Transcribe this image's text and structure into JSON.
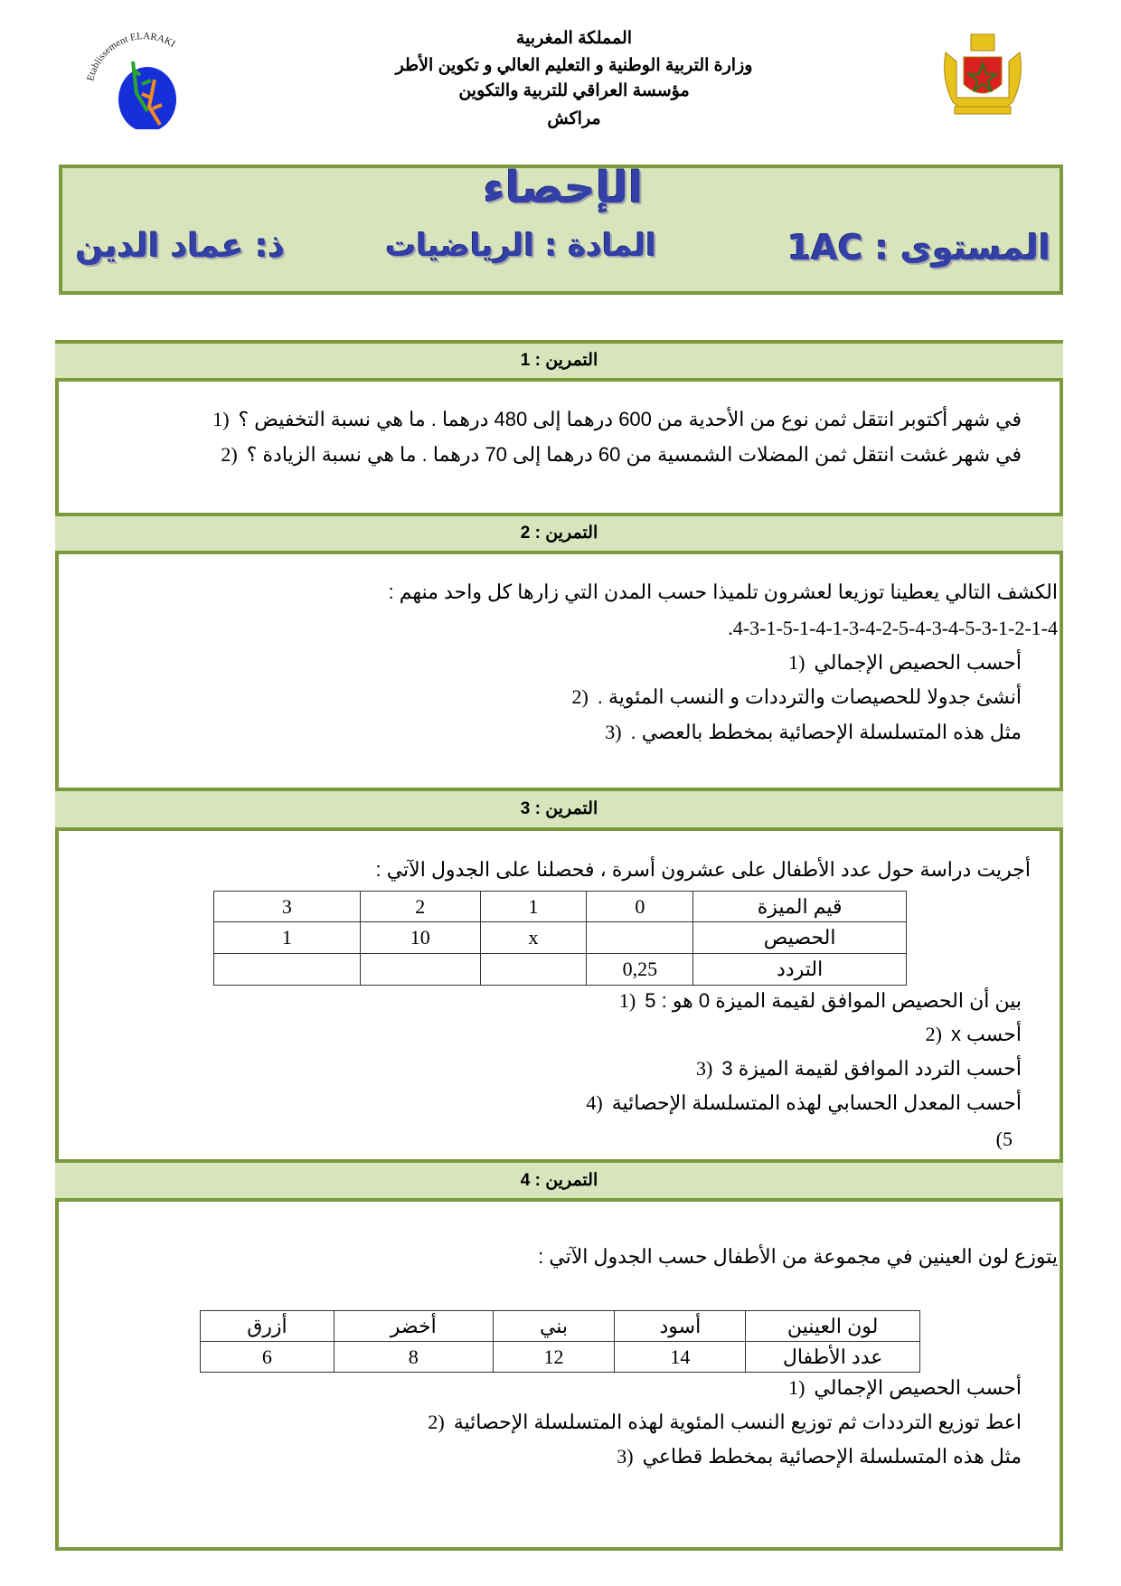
{
  "header": {
    "logo_left_text": "Etablissement ELARAKI",
    "lines": [
      "المملكة المغربية",
      "وزارة التربية الوطنية و التعليم العالي و تكوين الأطر",
      "مؤسسة العراقي للتربية والتكوين",
      "مراكش"
    ]
  },
  "title_box": {
    "title": "الإحصاء",
    "level": "المستوى : 1AC",
    "subject": "المادة : الرياضيات",
    "teacher": "ذ: عماد الدين"
  },
  "exercises": [
    {
      "heading": "التمرين : 1",
      "items": [
        {
          "n": "1)",
          "text": "في شهر أكتوبر انتقل ثمن نوع من الأحدية من 600 درهما إلى 480 درهما . ما هي نسبة التخفيض ؟"
        },
        {
          "n": "2)",
          "text": "في شهر غشت انتقل ثمن المضلات الشمسية من 60 درهما إلى 70 درهما . ما هي نسبة الزيادة ؟"
        }
      ]
    },
    {
      "heading": "التمرين : 2",
      "intro": "الكشف التالي يعطينا توزيعا لعشرون تلميذا حسب المدن التي زارها كل واحد منهم :",
      "series": ".4-3-1-5-1-4-1-3-4-2-5-4-3-4-5-3-1-2-1-4",
      "items": [
        {
          "n": "1)",
          "text": "أحسب الحصيص الإجمالي"
        },
        {
          "n": "2)",
          "text": "أنشئ جدولا للحصيصات والترددات و النسب المئوية ."
        },
        {
          "n": "3)",
          "text": "مثل هذه المتسلسلة الإحصائية بمخطط بالعصي ."
        }
      ]
    },
    {
      "heading": "التمرين : 3",
      "intro": "أجريت دراسة حول عدد الأطفال على عشرون أسرة ، فحصلنا على الجدول الآتي :",
      "table": [
        [
          "قيم الميزة",
          "0",
          "1",
          "2",
          "3"
        ],
        [
          "الحصيص",
          "",
          "x",
          "10",
          "1"
        ],
        [
          "التردد",
          "0,25",
          "",
          "",
          ""
        ]
      ],
      "items": [
        {
          "n": "1)",
          "text": "بين أن الحصيص الموافق لقيمة الميزة 0 هو : 5"
        },
        {
          "n": "2)",
          "text": "أحسب x"
        },
        {
          "n": "3)",
          "text": "أحسب التردد الموافق لقيمة الميزة 3"
        },
        {
          "n": "4)",
          "text": "أحسب المعدل الحسابي لهذه المتسلسلة الإحصائية"
        },
        {
          "n": "(5",
          "text": ""
        }
      ]
    },
    {
      "heading": "التمرين : 4",
      "intro": "يتوزع لون العينين في مجموعة من الأطفال حسب الجدول الآتي :",
      "table": [
        [
          "لون العينين",
          "أسود",
          "بني",
          "أخضر",
          "أزرق"
        ],
        [
          "عدد الأطفال",
          "14",
          "12",
          "8",
          "6"
        ]
      ],
      "items": [
        {
          "n": "1)",
          "text": "أحسب الحصيص الإجمالي"
        },
        {
          "n": "2)",
          "text": "اعط توزيع الترددات ثم توزيع النسب المئوية لهذه المتسلسلة الإحصائية"
        },
        {
          "n": "3)",
          "text": "مثل هذه المتسلسلة الإحصائية بمخطط قطاعي"
        }
      ]
    }
  ],
  "colors": {
    "frame_green": "#7a9a3c",
    "band_fill": "#d8e4bc",
    "title_blue": "#3340a8"
  }
}
